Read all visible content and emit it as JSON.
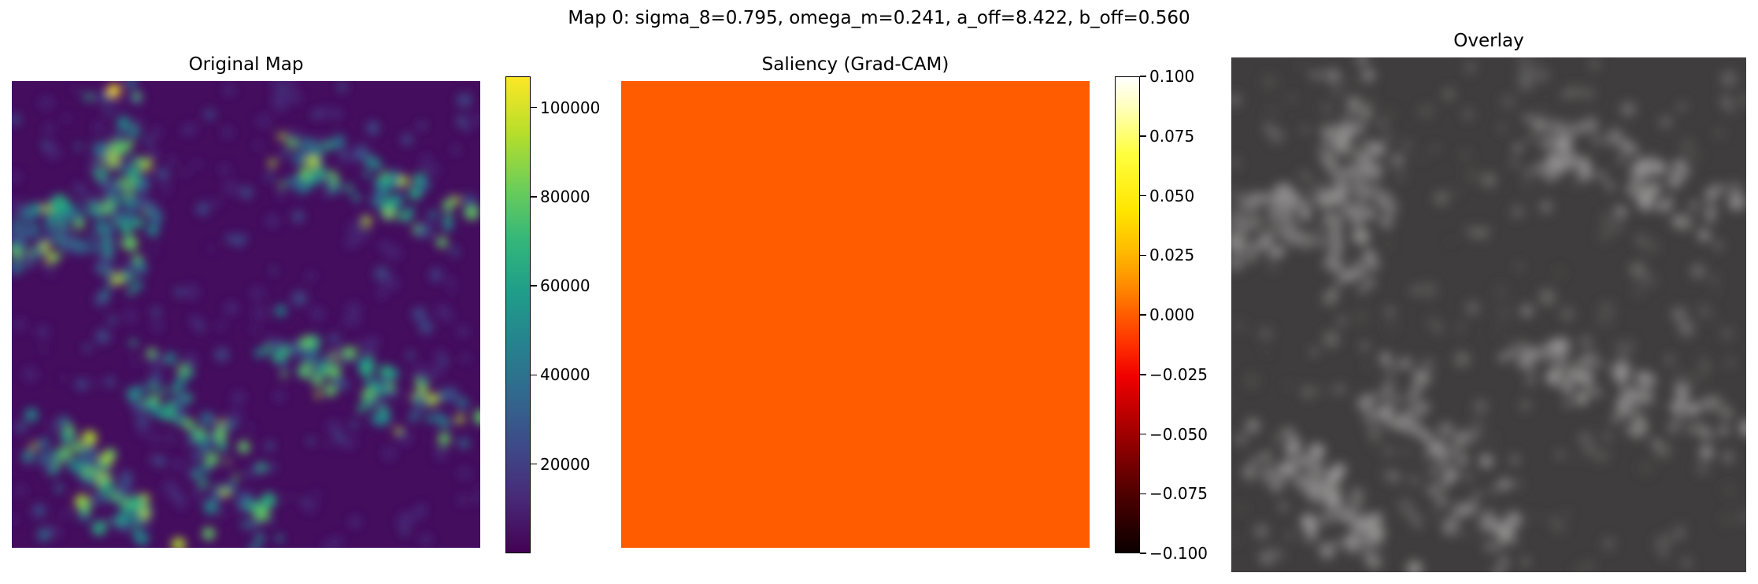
{
  "figure": {
    "suptitle": "Map 0: sigma_8=0.795, omega_m=0.241, a_off=8.422, b_off=0.560"
  },
  "chart_data": [
    {
      "type": "heatmap",
      "title": "Original Map",
      "colormap": "viridis",
      "colorbar": {
        "range": [
          0,
          107000
        ],
        "ticks": [
          20000,
          40000,
          60000,
          80000,
          100000
        ],
        "tick_labels": [
          "20000",
          "40000",
          "60000",
          "80000",
          "100000"
        ]
      },
      "axes_visible": false
    },
    {
      "type": "heatmap",
      "title": "Saliency (Grad-CAM)",
      "colormap": "hot",
      "uniform_value": 0.0,
      "fill_color": "#ff5c00",
      "colorbar": {
        "range": [
          -0.1,
          0.1
        ],
        "ticks": [
          0.1,
          0.075,
          0.05,
          0.025,
          0.0,
          -0.025,
          -0.05,
          -0.075,
          -0.1
        ],
        "tick_labels": [
          "0.100",
          "0.075",
          "0.050",
          "0.025",
          "0.000",
          "−0.025",
          "−0.050",
          "−0.075",
          "−0.100"
        ]
      },
      "axes_visible": false
    },
    {
      "type": "heatmap",
      "title": "Overlay",
      "colormap": "gray",
      "base_color": "#3f3d3d",
      "axes_visible": false
    }
  ]
}
